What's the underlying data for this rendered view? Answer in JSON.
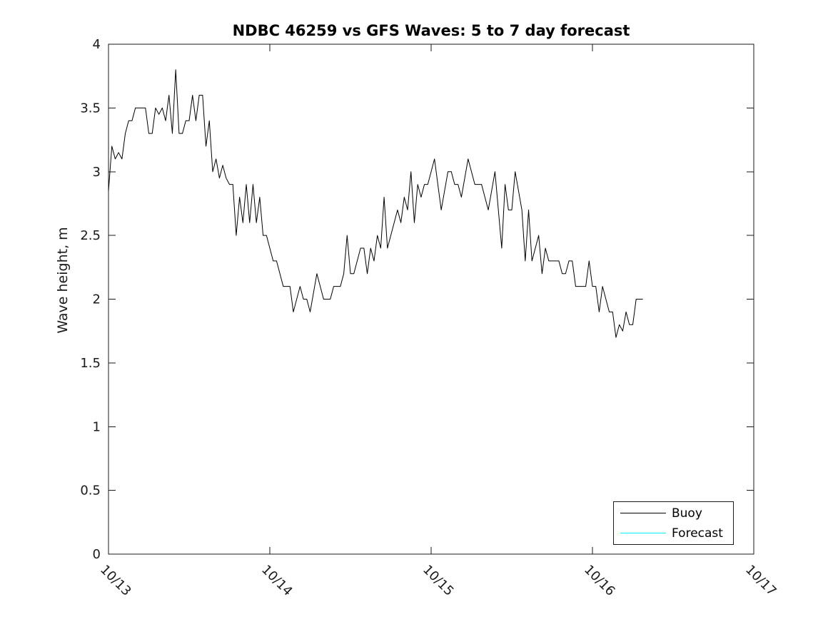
{
  "title": "NDBC 46259 vs GFS Waves: 5 to 7 day forecast",
  "axes": {
    "ylabel": "Wave height, m",
    "y_tick_labels": [
      "0",
      "0.5",
      "1",
      "1.5",
      "2",
      "2.5",
      "3",
      "3.5",
      "4"
    ],
    "x_tick_labels": [
      "10/13",
      "10/14",
      "10/15",
      "10/16",
      "10/17"
    ]
  },
  "legend": {
    "entries": [
      {
        "label": "Buoy",
        "color": "#000000"
      },
      {
        "label": "Forecast",
        "color": "#00F2FF"
      }
    ]
  },
  "chart_data": {
    "type": "line",
    "title": "NDBC 46259 vs GFS Waves: 5 to 7 day forecast",
    "xlabel": "",
    "ylabel": "Wave height, m",
    "ylim": [
      0,
      4
    ],
    "y_ticks": [
      0,
      0.5,
      1,
      1.5,
      2,
      2.5,
      3,
      3.5,
      4
    ],
    "x_tick_labels": [
      "10/13",
      "10/14",
      "10/15",
      "10/16",
      "10/17"
    ],
    "x_span_days": 4,
    "grid": false,
    "legend_position": "lower right",
    "series": [
      {
        "name": "Buoy",
        "color": "#000000",
        "x_start_hours": 0,
        "x_step_hours": 0.5,
        "x_origin_label": "10/13 00:00",
        "values": [
          2.85,
          3.2,
          3.1,
          3.15,
          3.1,
          3.3,
          3.4,
          3.4,
          3.5,
          3.5,
          3.5,
          3.5,
          3.3,
          3.3,
          3.5,
          3.45,
          3.5,
          3.4,
          3.6,
          3.3,
          3.8,
          3.3,
          3.3,
          3.4,
          3.4,
          3.6,
          3.4,
          3.6,
          3.6,
          3.2,
          3.4,
          3.0,
          3.1,
          2.95,
          3.05,
          2.95,
          2.9,
          2.9,
          2.5,
          2.8,
          2.6,
          2.9,
          2.6,
          2.9,
          2.6,
          2.8,
          2.5,
          2.5,
          2.4,
          2.3,
          2.3,
          2.2,
          2.1,
          2.1,
          2.1,
          1.9,
          2.0,
          2.1,
          2.0,
          2.0,
          1.9,
          2.05,
          2.2,
          2.1,
          2.0,
          2.0,
          2.0,
          2.1,
          2.1,
          2.1,
          2.2,
          2.5,
          2.2,
          2.2,
          2.3,
          2.4,
          2.4,
          2.2,
          2.4,
          2.3,
          2.5,
          2.4,
          2.8,
          2.4,
          2.5,
          2.6,
          2.7,
          2.6,
          2.8,
          2.7,
          3.0,
          2.6,
          2.9,
          2.8,
          2.9,
          2.9,
          3.0,
          3.1,
          2.9,
          2.7,
          2.85,
          3.0,
          3.0,
          2.9,
          2.9,
          2.8,
          2.95,
          3.1,
          3.0,
          2.9,
          2.9,
          2.9,
          2.8,
          2.7,
          2.85,
          3.0,
          2.7,
          2.4,
          2.9,
          2.7,
          2.7,
          3.0,
          2.85,
          2.7,
          2.3,
          2.7,
          2.3,
          2.4,
          2.5,
          2.2,
          2.4,
          2.3,
          2.3,
          2.3,
          2.3,
          2.2,
          2.2,
          2.3,
          2.3,
          2.1,
          2.1,
          2.1,
          2.1,
          2.3,
          2.1,
          2.1,
          1.9,
          2.1,
          2.0,
          1.9,
          1.9,
          1.7,
          1.8,
          1.75,
          1.9,
          1.8,
          1.8,
          2.0,
          2.0,
          2.0
        ]
      },
      {
        "name": "Forecast",
        "color": "#00F2FF",
        "values": []
      }
    ]
  }
}
